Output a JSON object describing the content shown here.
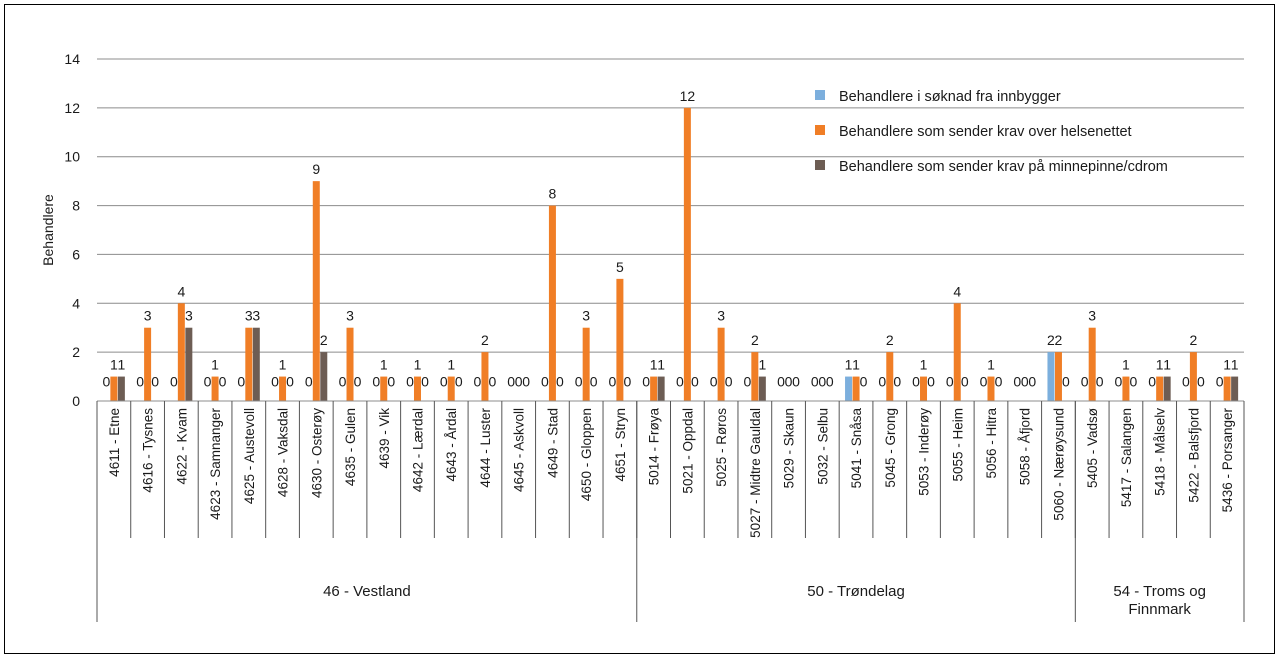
{
  "chart_data": {
    "type": "bar",
    "title": "",
    "xlabel": "",
    "ylabel": "Behandlere",
    "ylim": [
      0,
      14
    ],
    "yticks": [
      "0",
      "2",
      "4",
      "6",
      "8",
      "10",
      "12",
      "14"
    ],
    "grid": true,
    "legend_position": "top-right",
    "colors": [
      "#7cafdd",
      "#f07e26",
      "#6d5d54"
    ],
    "categories": [
      "4611 - Etne",
      "4616 - Tysnes",
      "4622 - Kvam",
      "4623 - Samnanger",
      "4625 - Austevoll",
      "4628 - Vaksdal",
      "4630 - Osterøy",
      "4635 - Gulen",
      "4639 - Vik",
      "4642 - Lærdal",
      "4643 - Årdal",
      "4644 - Luster",
      "4645 - Askvoll",
      "4649 - Stad",
      "4650 - Gloppen",
      "4651 - Stryn",
      "5014 - Frøya",
      "5021 - Oppdal",
      "5025 - Røros",
      "5027 - Midtre Gauldal",
      "5029 - Skaun",
      "5032 - Selbu",
      "5041 - Snåsa",
      "5045 - Grong",
      "5053 - Inderøy",
      "5055 - Heim",
      "5056 - Hitra",
      "5058 - Åfjord",
      "5060 - Nærøysund",
      "5405 - Vadsø",
      "5417 - Salangen",
      "5418 - Målselv",
      "5422 - Balsfjord",
      "5436 - Porsanger"
    ],
    "groups": [
      {
        "label": "46 - Vestland",
        "count": 16
      },
      {
        "label": "50 - Trøndelag",
        "count": 13
      },
      {
        "label": "54 - Troms og Finnmark",
        "count": 5
      }
    ],
    "series": [
      {
        "name": "Behandlere i søknad fra innbygger",
        "values": [
          0,
          0,
          0,
          0,
          0,
          0,
          0,
          0,
          0,
          0,
          0,
          0,
          0,
          0,
          0,
          0,
          0,
          0,
          0,
          0,
          0,
          0,
          1,
          0,
          0,
          0,
          0,
          0,
          2,
          0,
          0,
          0,
          0,
          0
        ]
      },
      {
        "name": "Behandlere som sender krav over helsenettet",
        "values": [
          1,
          3,
          4,
          1,
          3,
          1,
          9,
          3,
          1,
          1,
          1,
          2,
          0,
          8,
          3,
          5,
          1,
          12,
          3,
          2,
          0,
          0,
          1,
          2,
          1,
          4,
          1,
          0,
          2,
          3,
          1,
          1,
          2,
          1
        ]
      },
      {
        "name": "Behandlere som sender krav på minnepinne/cdrom",
        "values": [
          1,
          0,
          3,
          0,
          3,
          0,
          2,
          0,
          0,
          0,
          0,
          0,
          0,
          0,
          0,
          0,
          1,
          0,
          0,
          1,
          0,
          0,
          0,
          0,
          0,
          0,
          0,
          0,
          0,
          0,
          0,
          1,
          0,
          1
        ]
      }
    ]
  }
}
